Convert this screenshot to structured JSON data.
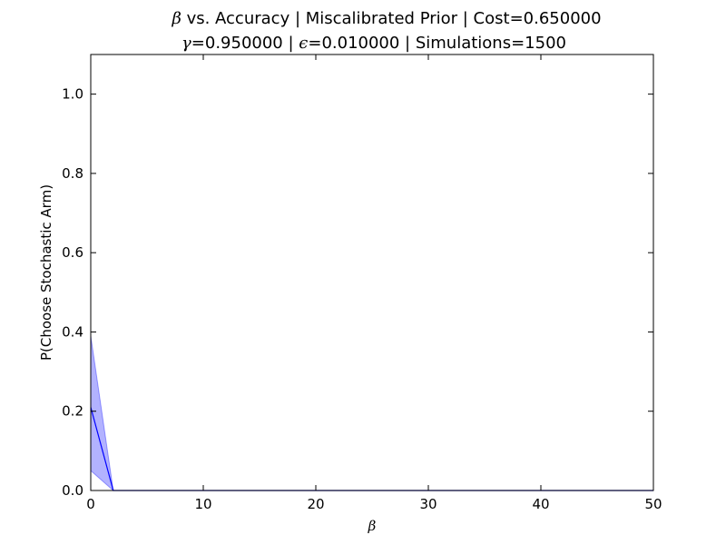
{
  "chart_data": {
    "type": "line",
    "title": {
      "line1": {
        "sym": "β",
        "rest": " vs. Accuracy | Miscalibrated Prior | Cost=0.650000"
      },
      "line2": {
        "sym1": "γ",
        "part1": "=0.950000 | ",
        "sym2": "ϵ",
        "part2": "=0.010000 | Simulations=1500"
      }
    },
    "xlabel": "β",
    "ylabel": "P(Choose Stochastic Arm)",
    "xlim": [
      0,
      50
    ],
    "ylim": [
      0,
      1.1
    ],
    "xticks": [
      0,
      10,
      20,
      30,
      40,
      50
    ],
    "xtick_labels": [
      "0",
      "10",
      "20",
      "30",
      "40",
      "50"
    ],
    "yticks": [
      0.0,
      0.2,
      0.4,
      0.6,
      0.8,
      1.0
    ],
    "ytick_labels": [
      "0.0",
      "0.2",
      "0.4",
      "0.6",
      "0.8",
      "1.0"
    ],
    "grid": false,
    "series": [
      {
        "x": [
          0,
          2,
          50
        ],
        "y": [
          0.21,
          0.0,
          0.0
        ],
        "lower": [
          0.05,
          0.0,
          0.0
        ],
        "upper": [
          0.39,
          0.0,
          0.0
        ],
        "color": "#0000ff",
        "band_color": "#0000ff"
      }
    ]
  }
}
